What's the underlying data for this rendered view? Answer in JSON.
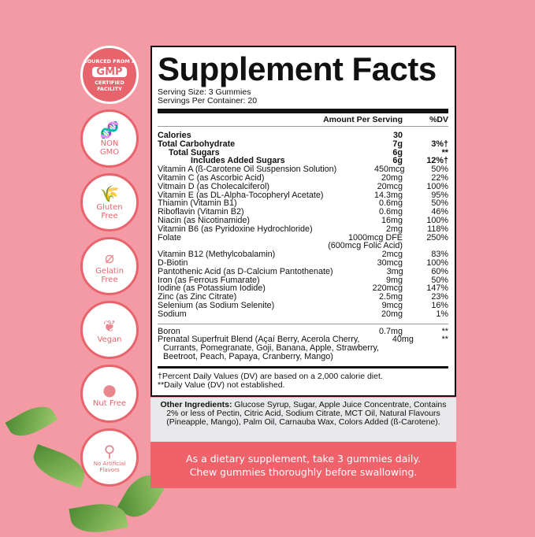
{
  "badges": [
    {
      "icon": "gmp-seal",
      "lines": [
        "SOURCED FROM A",
        "GMP",
        "CERTIFIED FACILITY"
      ]
    },
    {
      "icon": "dna-icon",
      "label1": "NON",
      "label2": "GMO"
    },
    {
      "icon": "wheat-icon",
      "label1": "Gluten",
      "label2": "Free"
    },
    {
      "icon": "gelatin-icon",
      "label1": "Gelatin",
      "label2": "Free"
    },
    {
      "icon": "leaf-icon",
      "label1": "Vegan",
      "label2": ""
    },
    {
      "icon": "nut-icon",
      "label1": "Nut Free",
      "label2": ""
    },
    {
      "icon": "dropper-icon",
      "label1": "No Artificial",
      "label2": "Flavors"
    }
  ],
  "label": {
    "title": "Supplement Facts",
    "serving_size": "Serving Size: 3 Gummies",
    "servings_per_container": "Servings Per Container: 20",
    "col_amount": "Amount Per Serving",
    "col_dv": "%DV",
    "rows": [
      {
        "name": "Calories",
        "amount": "30",
        "dv": ""
      },
      {
        "name": "Total Carbohydrate",
        "amount": "7g",
        "dv": "3%†"
      },
      {
        "name": "Total Sugars",
        "amount": "6g",
        "dv": "**"
      },
      {
        "name": "Includes Added Sugars",
        "amount": "6g",
        "dv": "12%†"
      },
      {
        "name": "Vitamin A (ß-Carotene Oil Suspension Solution)",
        "amount": "450mcg",
        "dv": "50%"
      },
      {
        "name": "Vitamin C (as Ascorbic Acid)",
        "amount": "20mg",
        "dv": "22%"
      },
      {
        "name": "Vitmain D (as Cholecalciferol)",
        "amount": "20mcg",
        "dv": "100%"
      },
      {
        "name": "Vitamin E (as DL-Alpha-Tocopheryl Acetate)",
        "amount": "14.3mg",
        "dv": "95%"
      },
      {
        "name": "Thiamin (Vitamin B1)",
        "amount": "0.6mg",
        "dv": "50%"
      },
      {
        "name": "Riboflavin (Vitamin B2)",
        "amount": "0.6mg",
        "dv": "46%"
      },
      {
        "name": "Niacin (as Nicotinamide)",
        "amount": "16mg",
        "dv": "100%"
      },
      {
        "name": "Vitamin B6 (as Pyridoxine Hydrochloride)",
        "amount": "2mg",
        "dv": "118%"
      },
      {
        "name": "Folate",
        "amount": "1000mcg DFE",
        "dv": "250%"
      },
      {
        "name": "",
        "amount": "(600mcg Folic Acid)",
        "dv": ""
      },
      {
        "name": "Vitamin B12 (Methylcobalamin)",
        "amount": "2mcg",
        "dv": "83%"
      },
      {
        "name": "D-Biotin",
        "amount": "30mcg",
        "dv": "100%"
      },
      {
        "name": "Pantothenic Acid (as D-Calcium Pantothenate)",
        "amount": "3mg",
        "dv": "60%"
      },
      {
        "name": "Iron (as Ferrous Fumarate)",
        "amount": "9mg",
        "dv": "50%"
      },
      {
        "name": "Iodine (as Potassium Iodide)",
        "amount": "220mcg",
        "dv": "147%"
      },
      {
        "name": "Zinc (as Zinc Citrate)",
        "amount": "2.5mg",
        "dv": "23%"
      },
      {
        "name": "Selenium (as Sodium Selenite)",
        "amount": "9mcg",
        "dv": "16%"
      },
      {
        "name": "Sodium",
        "amount": "20mg",
        "dv": "1%"
      }
    ],
    "other_rows": [
      {
        "name": "Boron",
        "amount": "0.7mg",
        "dv": "**"
      },
      {
        "name": "Prenatal Superfruit Blend (Açaí Berry, Acerola Cherry,",
        "amount": "40mg",
        "dv": "**"
      },
      {
        "name": "Currants, Pomegranate, Goji, Banana, Apple, Strawberry,",
        "amount": "",
        "dv": ""
      },
      {
        "name": "Beetroot, Peach, Papaya, Cranberry, Mango)",
        "amount": "",
        "dv": ""
      }
    ],
    "footnote1": "†Percent Daily Values (DV) are based on a 2,000 calorie diet.",
    "footnote2": "**Daily Value (DV) not established."
  },
  "other_ingredients": {
    "heading": "Other Ingredients:",
    "text": " Glucose Syrup, Sugar, Apple Juice Concentrate, Contains 2% or less of Pectin, Citric Acid, Sodium Citrate, MCT Oil, Natural Flavours (Pineapple, Mango), Palm Oil, Carnauba Wax, Colors Added (ß-Carotene)."
  },
  "directions": {
    "line1": "As a dietary supplement, take 3 gummies daily.",
    "line2": "Chew gummies thoroughly before swallowing."
  },
  "colors": {
    "background": "#f49aa5",
    "accent": "#f0616a",
    "badge": "#e8646c"
  }
}
